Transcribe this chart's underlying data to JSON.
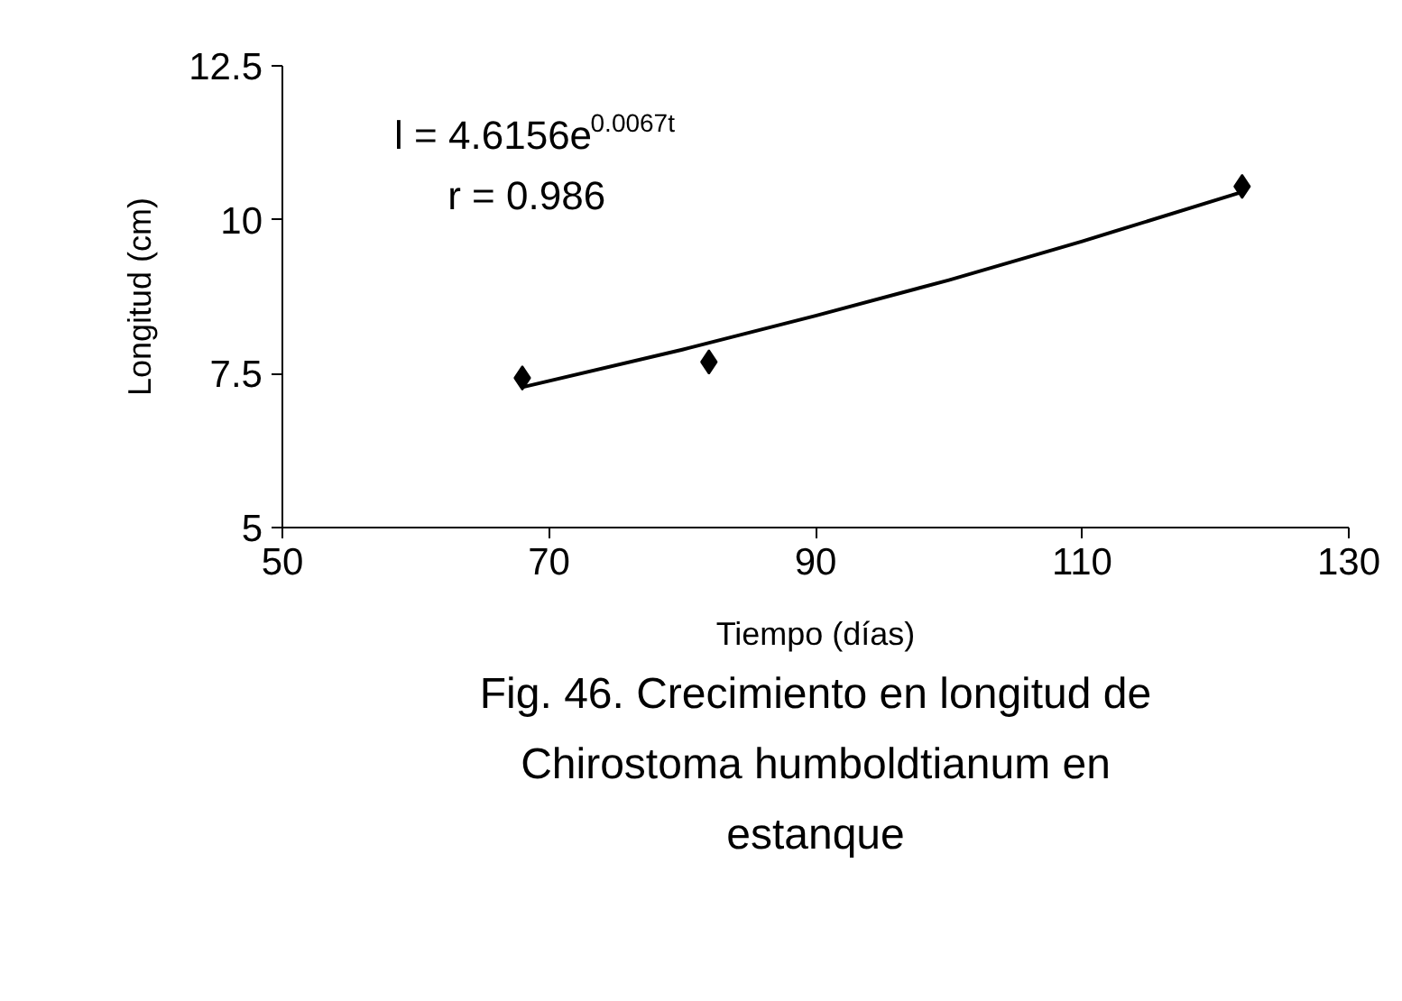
{
  "chart_data": {
    "type": "scatter",
    "title": "Fig. 46. Crecimiento en longitud de Chirostoma humboldtianum en estanque",
    "xlabel": "Tiempo (días)",
    "ylabel": "Longitud (cm)",
    "annotations": [
      "l = 4.6156e$^{0.0067t}$",
      "r = 0.986"
    ],
    "x": [
      68,
      82,
      122
    ],
    "series": [
      {
        "color": "#000000",
        "marker": "diamond",
        "values": [
          7.43,
          7.69,
          10.54
        ]
      },
      {
        "type": "line",
        "color": "#000000",
        "x": [
          68,
          80,
          90,
          100,
          110,
          122
        ],
        "values": [
          7.28,
          7.89,
          8.44,
          9.02,
          9.65,
          10.45
        ]
      }
    ],
    "xlim": [
      50,
      130
    ],
    "xticks": [
      50,
      70,
      90,
      110,
      130
    ],
    "ylim": [
      5,
      12.5
    ],
    "yticks": [
      5,
      7.5,
      10,
      12.5
    ],
    "grid": false
  }
}
